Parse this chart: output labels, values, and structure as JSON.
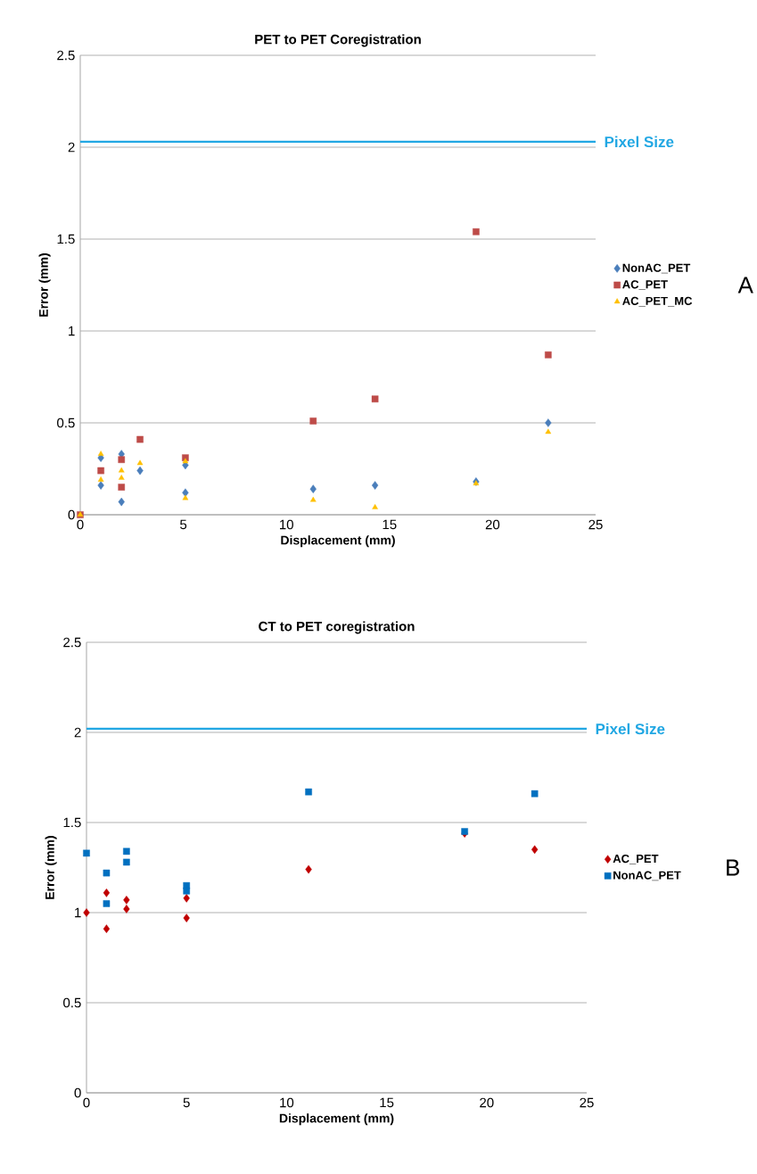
{
  "chart_data": [
    {
      "type": "scatter",
      "title": "PET to PET Coregistration",
      "xlabel": "Displacement (mm)",
      "ylabel": "Error (mm)",
      "xlim": [
        0,
        25
      ],
      "ylim": [
        0,
        2.5
      ],
      "xticks": [
        0,
        5,
        10,
        15,
        20,
        25
      ],
      "yticks": [
        0,
        0.5,
        1,
        1.5,
        2,
        2.5
      ],
      "grid": "y",
      "legend": "right",
      "series": [
        {
          "name": "NonAC_PET",
          "color": "#4a7ebb",
          "marker": "diamond",
          "x": [
            1,
            1,
            2,
            2,
            2.9,
            5.1,
            5.1,
            11.3,
            14.3,
            19.2,
            22.7
          ],
          "values": [
            0.16,
            0.31,
            0.07,
            0.33,
            0.24,
            0.27,
            0.12,
            0.14,
            0.16,
            0.18,
            0.5
          ]
        },
        {
          "name": "AC_PET",
          "color": "#be4b48",
          "marker": "square",
          "x": [
            0,
            1,
            2,
            2,
            2.9,
            5.1,
            11.3,
            14.3,
            19.2,
            22.7
          ],
          "values": [
            0,
            0.24,
            0.3,
            0.15,
            0.41,
            0.31,
            0.51,
            0.63,
            1.54,
            0.87
          ]
        },
        {
          "name": "AC_PET_MC",
          "color": "#ffc000",
          "marker": "triangle",
          "x": [
            0,
            1,
            1,
            2,
            2,
            2.9,
            5.1,
            5.1,
            11.3,
            14.3,
            19.2,
            22.7
          ],
          "values": [
            0,
            0.33,
            0.19,
            0.24,
            0.2,
            0.28,
            0.29,
            0.09,
            0.08,
            0.04,
            0.17,
            0.45
          ]
        }
      ],
      "ref_lines": [
        {
          "axis": "y",
          "value": 2.03,
          "label": "Pixel Size",
          "color": "#21a7e3"
        }
      ],
      "annotations": [
        "A"
      ]
    },
    {
      "type": "scatter",
      "title": "CT to PET coregistration",
      "xlabel": "Displacement (mm)",
      "ylabel": "Error (mm)",
      "xlim": [
        0,
        25
      ],
      "ylim": [
        0,
        2.5
      ],
      "xticks": [
        0,
        5,
        10,
        15,
        20,
        25
      ],
      "yticks": [
        0,
        0.5,
        1,
        1.5,
        2,
        2.5
      ],
      "grid": "y",
      "legend": "right",
      "series": [
        {
          "name": "AC_PET",
          "color": "#c00000",
          "marker": "diamond",
          "x": [
            0,
            1,
            1,
            2,
            2,
            5,
            5,
            11.1,
            18.9,
            22.4
          ],
          "values": [
            1.0,
            1.11,
            0.91,
            1.07,
            1.02,
            1.08,
            0.97,
            1.24,
            1.44,
            1.35
          ]
        },
        {
          "name": "NonAC_PET",
          "color": "#0070c0",
          "marker": "square",
          "x": [
            0,
            1,
            1,
            2,
            2,
            5,
            5,
            11.1,
            18.9,
            22.4
          ],
          "values": [
            1.33,
            1.22,
            1.05,
            1.34,
            1.28,
            1.15,
            1.12,
            1.67,
            1.45,
            1.66
          ]
        }
      ],
      "ref_lines": [
        {
          "axis": "y",
          "value": 2.02,
          "label": "Pixel Size",
          "color": "#21a7e3"
        }
      ],
      "annotations": [
        "B"
      ]
    }
  ]
}
